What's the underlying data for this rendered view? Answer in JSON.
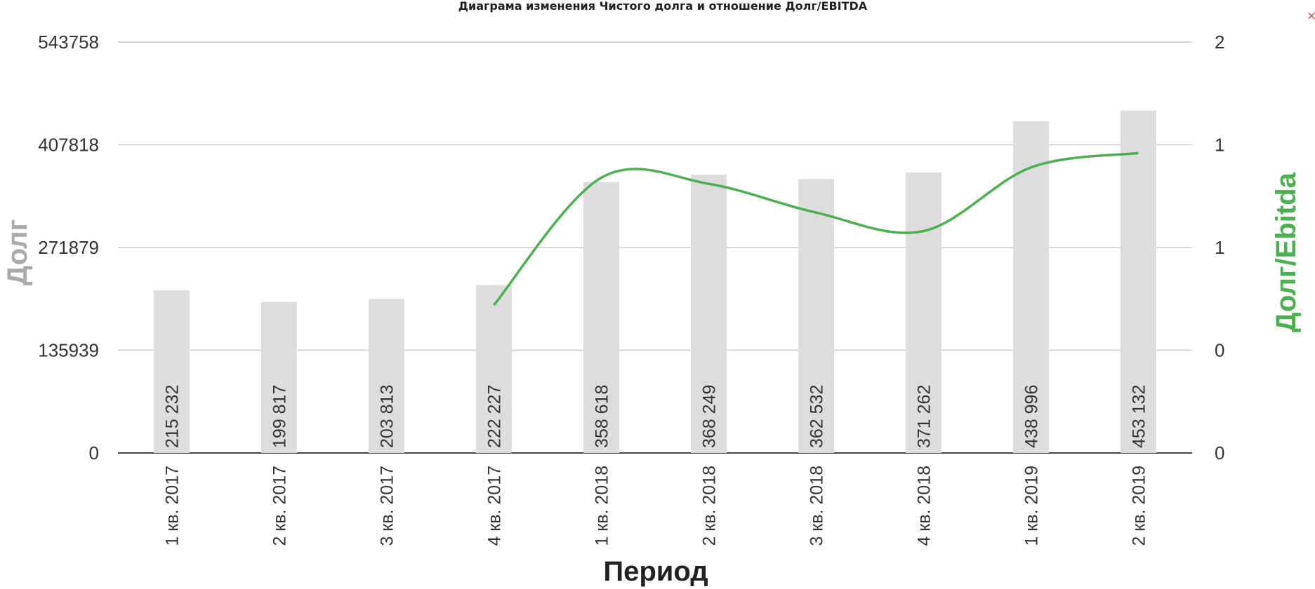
{
  "chart_data": {
    "type": "bar",
    "title": "Диаграма изменения Чистого долга и отношение Долг/EBITDA",
    "xlabel": "Период",
    "ylabel": "Долг",
    "y2label": "Долг/Ebitda",
    "categories": [
      "1 кв. 2017",
      "2 кв. 2017",
      "3 кв. 2017",
      "4 кв. 2017",
      "1 кв. 2018",
      "2 кв. 2018",
      "3 кв. 2018",
      "4 кв. 2018",
      "1 кв. 2019",
      "2 кв. 2019"
    ],
    "series": [
      {
        "type": "bar",
        "values": [
          215232,
          199817,
          203813,
          222227,
          358618,
          368249,
          362532,
          371262,
          438996,
          453132
        ],
        "labels": [
          "215 232",
          "199 817",
          "203 813",
          "222 227",
          "358 618",
          "368 249",
          "362 532",
          "371 262",
          "438 996",
          "453 132"
        ],
        "color": "#dddddd"
      },
      {
        "type": "line",
        "axis": "right",
        "values": [
          null,
          null,
          null,
          0.72,
          1.34,
          1.31,
          1.17,
          1.08,
          1.39,
          1.46
        ],
        "color": "#4caf50"
      }
    ],
    "ylim": [
      0,
      543758
    ],
    "y2lim": [
      0,
      2
    ],
    "yticks": [
      "0",
      "135939",
      "271879",
      "407818",
      "543758"
    ],
    "y2ticks": [
      "0",
      "0",
      "1",
      "1",
      "2"
    ],
    "grid": true
  },
  "ui": {
    "close_glyph": "×"
  }
}
